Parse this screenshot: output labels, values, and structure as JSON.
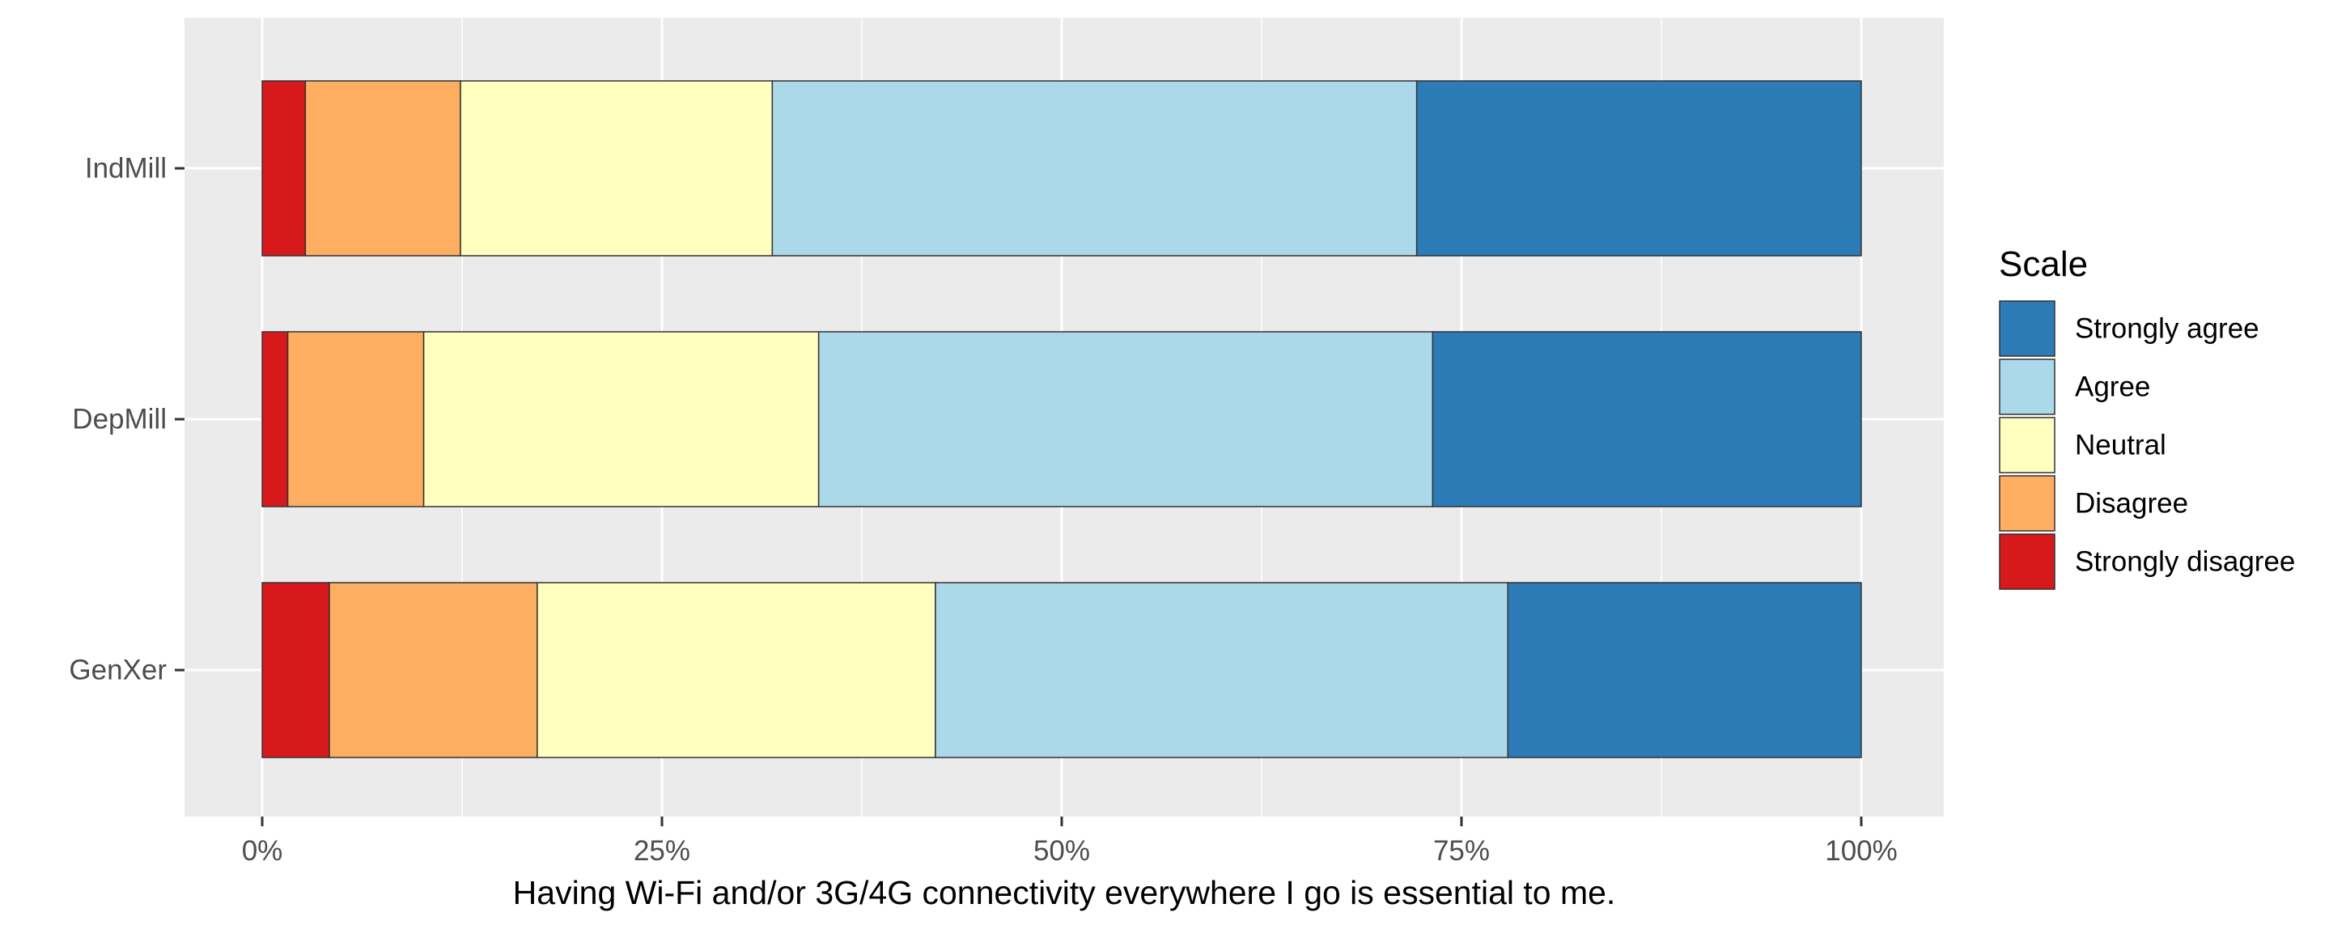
{
  "chart_data": {
    "type": "bar",
    "orientation": "horizontal",
    "stacked": true,
    "normalized": true,
    "title": "",
    "xlabel": "Having Wi-Fi and/or 3G/4G connectivity everywhere I go is essential to me.",
    "ylabel": "",
    "xlim": [
      0,
      1
    ],
    "x_ticks": [
      0,
      0.25,
      0.5,
      0.75,
      1
    ],
    "x_tick_labels": [
      "0%",
      "25%",
      "50%",
      "75%",
      "100%"
    ],
    "categories": [
      "IndMill",
      "DepMill",
      "GenXer"
    ],
    "series": [
      {
        "name": "Strongly disagree",
        "color": "#d7191c",
        "values": [
          0.027,
          0.016,
          0.042
        ]
      },
      {
        "name": "Disagree",
        "color": "#fdae61",
        "values": [
          0.097,
          0.085,
          0.13
        ]
      },
      {
        "name": "Neutral",
        "color": "#ffffbf",
        "values": [
          0.195,
          0.247,
          0.249
        ]
      },
      {
        "name": "Agree",
        "color": "#abd9e9",
        "values": [
          0.403,
          0.384,
          0.358
        ]
      },
      {
        "name": "Strongly agree",
        "color": "#2c7bb6",
        "values": [
          0.278,
          0.268,
          0.221
        ]
      }
    ],
    "legend": {
      "title": "Scale",
      "placement": "right",
      "order": [
        "Strongly agree",
        "Agree",
        "Neutral",
        "Disagree",
        "Strongly disagree"
      ]
    },
    "grid": true,
    "panel_background": "#ebebeb"
  }
}
